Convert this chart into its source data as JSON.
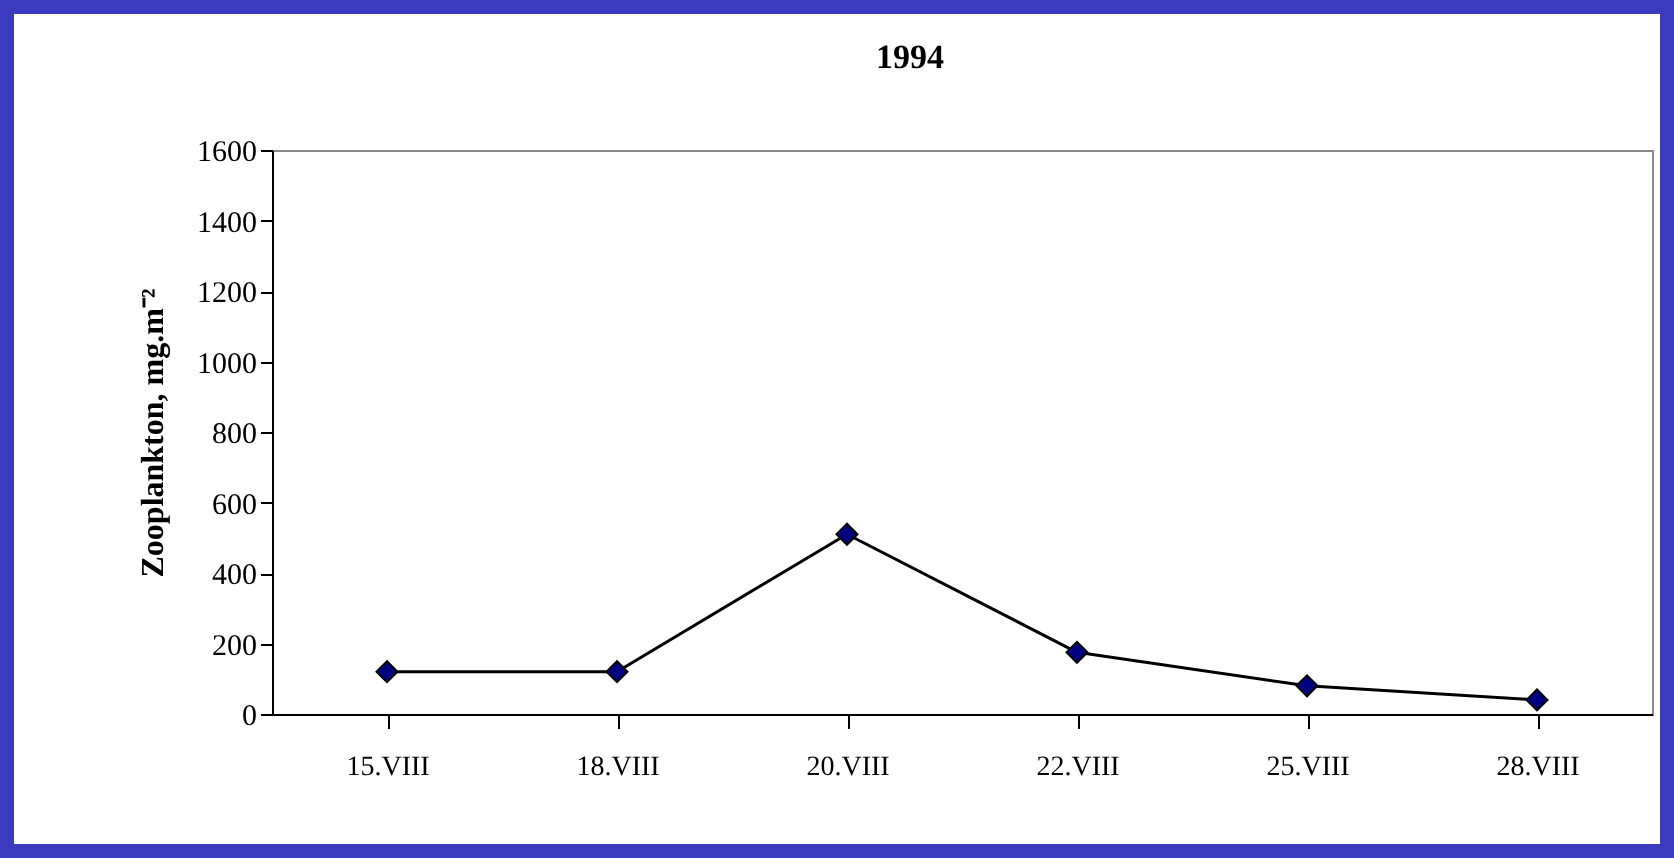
{
  "chart_data": {
    "type": "line",
    "title": "1994",
    "ylabel": "Zooplankton, mg.m⁻²",
    "categories": [
      "15.VIII",
      "18.VIII",
      "20.VIII",
      "22.VIII",
      "25.VIII",
      "28.VIII"
    ],
    "series": [
      {
        "color": "#000080",
        "values": [
          120,
          120,
          510,
          175,
          80,
          40
        ]
      }
    ],
    "ylim": [
      0,
      1600
    ],
    "yticks": [
      0,
      200,
      400,
      600,
      800,
      1000,
      1200,
      1400,
      1600
    ],
    "grid": false,
    "marker": "diamond",
    "line_style": "solid"
  }
}
